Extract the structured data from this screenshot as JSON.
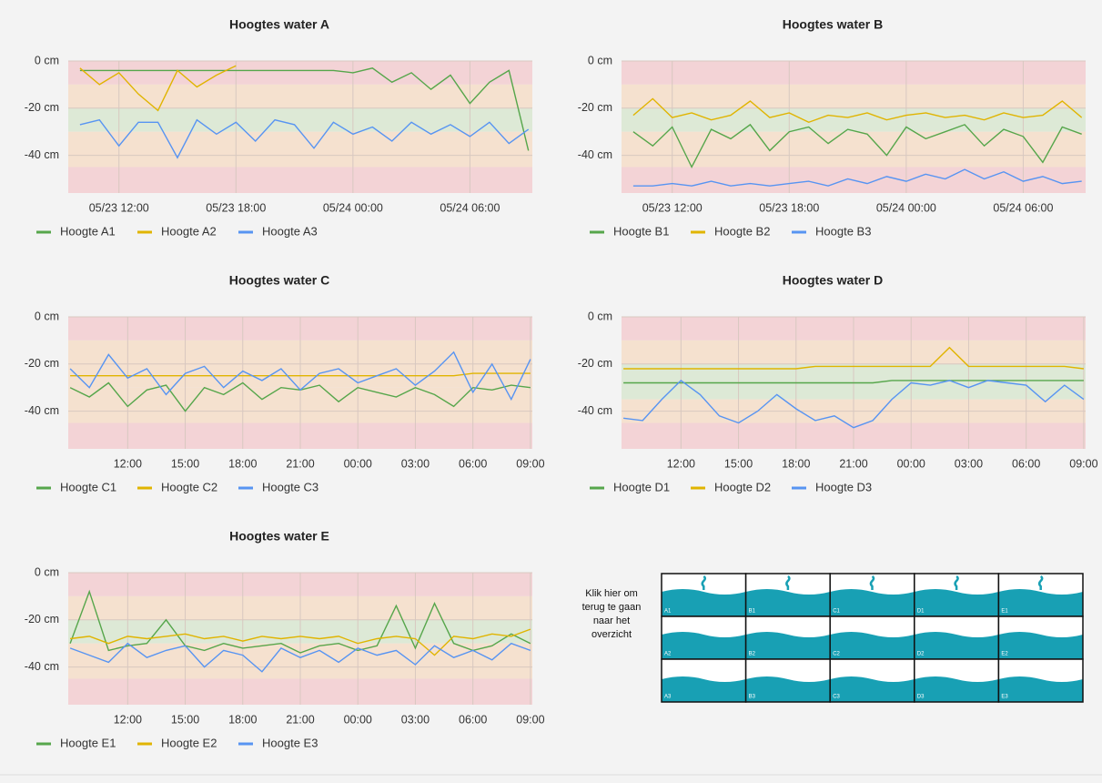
{
  "chart_data": [
    {
      "type": "line",
      "title": "Hoogtes water A",
      "x": [
        10,
        11,
        12,
        13,
        14,
        15,
        16,
        17,
        18,
        19,
        20,
        21,
        22,
        23,
        24,
        25,
        26,
        27,
        28,
        29,
        30,
        31,
        32,
        33
      ],
      "xlim": [
        9.4,
        33.2
      ],
      "xticks": [
        {
          "value": 12,
          "label": "05/23 12:00"
        },
        {
          "value": 18,
          "label": "05/23 18:00"
        },
        {
          "value": 24,
          "label": "05/24 00:00"
        },
        {
          "value": 30,
          "label": "05/24 06:00"
        }
      ],
      "ylim": [
        -56,
        0
      ],
      "yticks": [
        {
          "value": 0,
          "label": "0 cm"
        },
        {
          "value": -20,
          "label": "-20 cm"
        },
        {
          "value": -40,
          "label": "-40 cm"
        }
      ],
      "grid": true,
      "bands": [
        {
          "from": 0,
          "to": -10,
          "color": "#f3d3d6"
        },
        {
          "from": -10,
          "to": -20,
          "color": "#f5e1cf"
        },
        {
          "from": -20,
          "to": -30,
          "color": "#dde9d6"
        },
        {
          "from": -30,
          "to": -45,
          "color": "#f5e1cf"
        },
        {
          "from": -45,
          "to": -56,
          "color": "#f3d3d6"
        }
      ],
      "series": [
        {
          "name": "Hoogte A1",
          "color": "#56a64b",
          "values": [
            -4,
            -4,
            -4,
            -4,
            -4,
            -4,
            -4,
            -4,
            -4,
            -4,
            -4,
            -4,
            -4,
            -4,
            -5,
            -3,
            -9,
            -5,
            -12,
            -6,
            -18,
            -9,
            -4,
            -38
          ]
        },
        {
          "name": "Hoogte A2",
          "color": "#e0b400",
          "values": [
            -3,
            -10,
            -5,
            -14,
            -21,
            -4,
            -11,
            -6,
            -2,
            null,
            null,
            null,
            null,
            null,
            null,
            null,
            null,
            null,
            null,
            null,
            null,
            null,
            null,
            null
          ]
        },
        {
          "name": "Hoogte A3",
          "color": "#5794f2",
          "values": [
            -27,
            -25,
            -36,
            -26,
            -26,
            -41,
            -25,
            -31,
            -26,
            -34,
            -25,
            -27,
            -37,
            -26,
            -31,
            -28,
            -34,
            -26,
            -31,
            -27,
            -32,
            -26,
            -35,
            -29
          ]
        }
      ]
    },
    {
      "type": "line",
      "title": "Hoogtes water B",
      "x": [
        10,
        11,
        12,
        13,
        14,
        15,
        16,
        17,
        18,
        19,
        20,
        21,
        22,
        23,
        24,
        25,
        26,
        27,
        28,
        29,
        30,
        31,
        32,
        33
      ],
      "xlim": [
        9.4,
        33.2
      ],
      "xticks": [
        {
          "value": 12,
          "label": "05/23 12:00"
        },
        {
          "value": 18,
          "label": "05/23 18:00"
        },
        {
          "value": 24,
          "label": "05/24 00:00"
        },
        {
          "value": 30,
          "label": "05/24 06:00"
        }
      ],
      "ylim": [
        -56,
        0
      ],
      "yticks": [
        {
          "value": 0,
          "label": "0 cm"
        },
        {
          "value": -20,
          "label": "-20 cm"
        },
        {
          "value": -40,
          "label": "-40 cm"
        }
      ],
      "grid": true,
      "bands": [
        {
          "from": 0,
          "to": -10,
          "color": "#f3d3d6"
        },
        {
          "from": -10,
          "to": -20,
          "color": "#f5e1cf"
        },
        {
          "from": -20,
          "to": -30,
          "color": "#dde9d6"
        },
        {
          "from": -30,
          "to": -45,
          "color": "#f5e1cf"
        },
        {
          "from": -45,
          "to": -56,
          "color": "#f3d3d6"
        }
      ],
      "series": [
        {
          "name": "Hoogte B1",
          "color": "#56a64b",
          "values": [
            -30,
            -36,
            -28,
            -45,
            -29,
            -33,
            -27,
            -38,
            -30,
            -28,
            -35,
            -29,
            -31,
            -40,
            -28,
            -33,
            -30,
            -27,
            -36,
            -29,
            -32,
            -43,
            -28,
            -31
          ]
        },
        {
          "name": "Hoogte B2",
          "color": "#e0b400",
          "values": [
            -23,
            -16,
            -24,
            -22,
            -25,
            -23,
            -17,
            -24,
            -22,
            -26,
            -23,
            -24,
            -22,
            -25,
            -23,
            -22,
            -24,
            -23,
            -25,
            -22,
            -24,
            -23,
            -17,
            -24
          ]
        },
        {
          "name": "Hoogte B3",
          "color": "#5794f2",
          "values": [
            -53,
            -53,
            -52,
            -53,
            -51,
            -53,
            -52,
            -53,
            -52,
            -51,
            -53,
            -50,
            -52,
            -49,
            -51,
            -48,
            -50,
            -46,
            -50,
            -47,
            -51,
            -49,
            -52,
            -51
          ]
        }
      ]
    },
    {
      "type": "line",
      "title": "Hoogtes water C",
      "x": [
        9,
        10,
        11,
        12,
        13,
        14,
        15,
        16,
        17,
        18,
        19,
        20,
        21,
        22,
        23,
        24,
        25,
        26,
        27,
        28,
        29,
        30,
        31,
        32,
        33
      ],
      "xlim": [
        8.9,
        33.1
      ],
      "xticks": [
        {
          "value": 12,
          "label": "12:00"
        },
        {
          "value": 15,
          "label": "15:00"
        },
        {
          "value": 18,
          "label": "18:00"
        },
        {
          "value": 21,
          "label": "21:00"
        },
        {
          "value": 24,
          "label": "00:00"
        },
        {
          "value": 27,
          "label": "03:00"
        },
        {
          "value": 30,
          "label": "06:00"
        },
        {
          "value": 33,
          "label": "09:00"
        }
      ],
      "ylim": [
        -56,
        0
      ],
      "yticks": [
        {
          "value": 0,
          "label": "0 cm"
        },
        {
          "value": -20,
          "label": "-20 cm"
        },
        {
          "value": -40,
          "label": "-40 cm"
        }
      ],
      "grid": true,
      "bands": [
        {
          "from": 0,
          "to": -10,
          "color": "#f3d3d6"
        },
        {
          "from": -10,
          "to": -20,
          "color": "#f5e1cf"
        },
        {
          "from": -20,
          "to": -30,
          "color": "#f5e1cf"
        },
        {
          "from": -30,
          "to": -45,
          "color": "#f5e1cf"
        },
        {
          "from": -45,
          "to": -56,
          "color": "#f3d3d6"
        }
      ],
      "series": [
        {
          "name": "Hoogte C1",
          "color": "#56a64b",
          "values": [
            -30,
            -34,
            -28,
            -38,
            -31,
            -29,
            -40,
            -30,
            -33,
            -28,
            -35,
            -30,
            -31,
            -29,
            -36,
            -30,
            -32,
            -34,
            -30,
            -33,
            -38,
            -30,
            -31,
            -29,
            -30
          ]
        },
        {
          "name": "Hoogte C2",
          "color": "#e0b400",
          "values": [
            -25,
            -25,
            -25,
            -25,
            -25,
            -25,
            -25,
            -25,
            -25,
            -25,
            -25,
            -25,
            -25,
            -25,
            -25,
            -25,
            -25,
            -25,
            -25,
            -25,
            -25,
            -24,
            -24,
            -24,
            -24
          ]
        },
        {
          "name": "Hoogte C3",
          "color": "#5794f2",
          "values": [
            -22,
            -30,
            -16,
            -26,
            -22,
            -33,
            -24,
            -21,
            -30,
            -23,
            -27,
            -22,
            -31,
            -24,
            -22,
            -28,
            -25,
            -22,
            -29,
            -23,
            -15,
            -32,
            -20,
            -35,
            -18
          ]
        }
      ]
    },
    {
      "type": "line",
      "title": "Hoogtes water D",
      "x": [
        9,
        10,
        11,
        12,
        13,
        14,
        15,
        16,
        17,
        18,
        19,
        20,
        21,
        22,
        23,
        24,
        25,
        26,
        27,
        28,
        29,
        30,
        31,
        32,
        33
      ],
      "xlim": [
        8.9,
        33.1
      ],
      "xticks": [
        {
          "value": 12,
          "label": "12:00"
        },
        {
          "value": 15,
          "label": "15:00"
        },
        {
          "value": 18,
          "label": "18:00"
        },
        {
          "value": 21,
          "label": "21:00"
        },
        {
          "value": 24,
          "label": "00:00"
        },
        {
          "value": 27,
          "label": "03:00"
        },
        {
          "value": 30,
          "label": "06:00"
        },
        {
          "value": 33,
          "label": "09:00"
        }
      ],
      "ylim": [
        -56,
        0
      ],
      "yticks": [
        {
          "value": 0,
          "label": "0 cm"
        },
        {
          "value": -20,
          "label": "-20 cm"
        },
        {
          "value": -40,
          "label": "-40 cm"
        }
      ],
      "grid": true,
      "bands": [
        {
          "from": 0,
          "to": -10,
          "color": "#f3d3d6"
        },
        {
          "from": -10,
          "to": -20,
          "color": "#f5e1cf"
        },
        {
          "from": -20,
          "to": -35,
          "color": "#dde9d6"
        },
        {
          "from": -35,
          "to": -45,
          "color": "#f5e1cf"
        },
        {
          "from": -45,
          "to": -56,
          "color": "#f3d3d6"
        }
      ],
      "series": [
        {
          "name": "Hoogte D1",
          "color": "#56a64b",
          "values": [
            -28,
            -28,
            -28,
            -28,
            -28,
            -28,
            -28,
            -28,
            -28,
            -28,
            -28,
            -28,
            -28,
            -28,
            -27,
            -27,
            -27,
            -27,
            -27,
            -27,
            -27,
            -27,
            -27,
            -27,
            -27
          ]
        },
        {
          "name": "Hoogte D2",
          "color": "#e0b400",
          "values": [
            -22,
            -22,
            -22,
            -22,
            -22,
            -22,
            -22,
            -22,
            -22,
            -22,
            -21,
            -21,
            -21,
            -21,
            -21,
            -21,
            -21,
            -13,
            -21,
            -21,
            -21,
            -21,
            -21,
            -21,
            -22
          ]
        },
        {
          "name": "Hoogte D3",
          "color": "#5794f2",
          "values": [
            -43,
            -44,
            -35,
            -27,
            -33,
            -42,
            -45,
            -40,
            -33,
            -39,
            -44,
            -42,
            -47,
            -44,
            -35,
            -28,
            -29,
            -27,
            -30,
            -27,
            -28,
            -29,
            -36,
            -29,
            -35
          ]
        }
      ]
    },
    {
      "type": "line",
      "title": "Hoogtes water E",
      "x": [
        9,
        10,
        11,
        12,
        13,
        14,
        15,
        16,
        17,
        18,
        19,
        20,
        21,
        22,
        23,
        24,
        25,
        26,
        27,
        28,
        29,
        30,
        31,
        32,
        33
      ],
      "xlim": [
        8.9,
        33.1
      ],
      "xticks": [
        {
          "value": 12,
          "label": "12:00"
        },
        {
          "value": 15,
          "label": "15:00"
        },
        {
          "value": 18,
          "label": "18:00"
        },
        {
          "value": 21,
          "label": "21:00"
        },
        {
          "value": 24,
          "label": "00:00"
        },
        {
          "value": 27,
          "label": "03:00"
        },
        {
          "value": 30,
          "label": "06:00"
        },
        {
          "value": 33,
          "label": "09:00"
        }
      ],
      "ylim": [
        -56,
        0
      ],
      "yticks": [
        {
          "value": 0,
          "label": "0 cm"
        },
        {
          "value": -20,
          "label": "-20 cm"
        },
        {
          "value": -40,
          "label": "-40 cm"
        }
      ],
      "grid": true,
      "bands": [
        {
          "from": 0,
          "to": -10,
          "color": "#f3d3d6"
        },
        {
          "from": -10,
          "to": -20,
          "color": "#f5e1cf"
        },
        {
          "from": -20,
          "to": -30,
          "color": "#dde9d6"
        },
        {
          "from": -30,
          "to": -45,
          "color": "#f5e1cf"
        },
        {
          "from": -45,
          "to": -56,
          "color": "#f3d3d6"
        }
      ],
      "series": [
        {
          "name": "Hoogte E1",
          "color": "#56a64b",
          "values": [
            -30,
            -8,
            -33,
            -31,
            -30,
            -20,
            -31,
            -33,
            -30,
            -32,
            -31,
            -30,
            -34,
            -31,
            -30,
            -33,
            -31,
            -14,
            -32,
            -13,
            -30,
            -33,
            -31,
            -26,
            -30
          ]
        },
        {
          "name": "Hoogte E2",
          "color": "#e0b400",
          "values": [
            -28,
            -27,
            -30,
            -27,
            -28,
            -27,
            -26,
            -28,
            -27,
            -29,
            -27,
            -28,
            -27,
            -28,
            -27,
            -30,
            -28,
            -27,
            -28,
            -35,
            -27,
            -28,
            -26,
            -27,
            -24
          ]
        },
        {
          "name": "Hoogte E3",
          "color": "#5794f2",
          "values": [
            -32,
            -35,
            -38,
            -30,
            -36,
            -33,
            -31,
            -40,
            -33,
            -35,
            -42,
            -32,
            -36,
            -33,
            -38,
            -32,
            -35,
            -33,
            -39,
            -31,
            -36,
            -33,
            -37,
            -30,
            -33
          ]
        }
      ]
    }
  ],
  "overview": {
    "text_lines": [
      "Klik hier om",
      "terug te gaan",
      "naar het",
      "overzicht"
    ],
    "cells": [
      [
        "A1",
        "B1",
        "C1",
        "D1",
        "E1"
      ],
      [
        "A2",
        "B2",
        "C2",
        "D2",
        "E2"
      ],
      [
        "A3",
        "B3",
        "C3",
        "D3",
        "E3"
      ]
    ]
  }
}
